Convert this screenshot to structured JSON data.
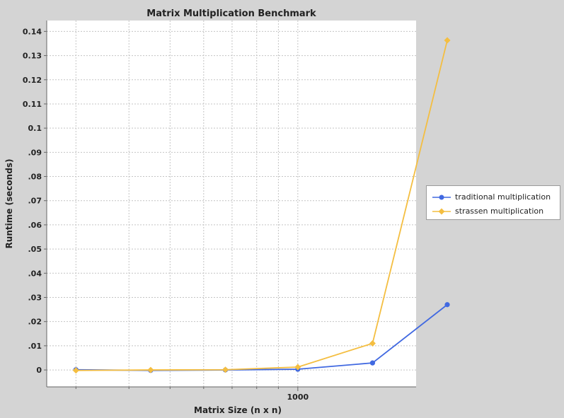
{
  "chart_data": {
    "type": "line",
    "title": "Matrix Multiplication Benchmark",
    "xlabel": "Matrix Size (n x n)",
    "ylabel": "Runtime (seconds)",
    "x_scale": "log",
    "xlim": [
      256,
      1900
    ],
    "ylim": [
      -0.007,
      0.1445
    ],
    "x_ticks": [
      1000
    ],
    "x_tick_labels": [
      "1000"
    ],
    "y_ticks": [
      0,
      0.01,
      0.02,
      0.03,
      0.04,
      0.05,
      0.06,
      0.07,
      0.08,
      0.09,
      0.1,
      0.11,
      0.12,
      0.13,
      0.14
    ],
    "y_tick_labels": [
      "0",
      ".01",
      ".02",
      ".03",
      ".04",
      ".05",
      ".06",
      ".07",
      ".08",
      ".09",
      "0.1",
      "0.11",
      "0.12",
      "0.13",
      "0.14"
    ],
    "grid": true,
    "legend_position": "right",
    "x": [
      300,
      450,
      675,
      1000,
      1500,
      2250
    ],
    "series": [
      {
        "name": "traditional multiplication",
        "color": "#4169e1",
        "marker": "circle",
        "values": [
          0.0001,
          -0.0002,
          0.0,
          0.0003,
          0.0029,
          0.027
        ]
      },
      {
        "name": "strassen multiplication",
        "color": "#f4be41",
        "marker": "diamond",
        "values": [
          -0.0002,
          0.0,
          0.0001,
          0.0012,
          0.011,
          0.1363
        ]
      }
    ]
  }
}
